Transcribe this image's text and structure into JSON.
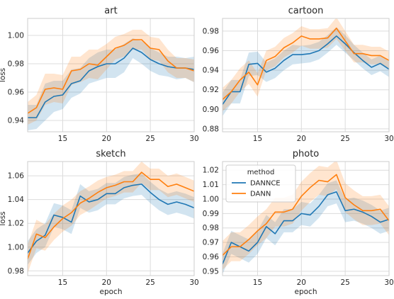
{
  "chart_data": [
    {
      "type": "line",
      "title": "art",
      "xlabel": "",
      "ylabel": "loss",
      "xlim": [
        11,
        30
      ],
      "ylim": [
        0.932,
        1.012
      ],
      "xticks": [
        "15",
        "20",
        "25",
        "30"
      ],
      "yticks": [
        "0.94",
        "0.96",
        "0.98",
        "1.00"
      ],
      "x": [
        11,
        12,
        13,
        14,
        15,
        16,
        17,
        18,
        19,
        20,
        21,
        22,
        23,
        24,
        25,
        26,
        27,
        28,
        29,
        30
      ],
      "series": [
        {
          "name": "DANNCE",
          "color": "#1f77b4",
          "values": [
            0.942,
            0.942,
            0.953,
            0.957,
            0.958,
            0.966,
            0.968,
            0.975,
            0.978,
            0.98,
            0.98,
            0.984,
            0.991,
            0.988,
            0.983,
            0.98,
            0.978,
            0.977,
            0.977,
            0.976
          ],
          "lower": [
            0.933,
            0.934,
            0.94,
            0.946,
            0.948,
            0.956,
            0.959,
            0.966,
            0.968,
            0.97,
            0.97,
            0.974,
            0.984,
            0.98,
            0.975,
            0.972,
            0.971,
            0.969,
            0.97,
            0.967
          ],
          "upper": [
            0.951,
            0.951,
            0.966,
            0.968,
            0.968,
            0.976,
            0.977,
            0.984,
            0.988,
            0.99,
            0.99,
            0.994,
            0.998,
            0.996,
            0.991,
            0.988,
            0.985,
            0.985,
            0.984,
            0.985
          ]
        },
        {
          "name": "DANN",
          "color": "#ff7f0e",
          "values": [
            0.945,
            0.949,
            0.962,
            0.963,
            0.962,
            0.975,
            0.976,
            0.98,
            0.979,
            0.985,
            0.991,
            0.993,
            0.997,
            0.997,
            0.991,
            0.99,
            0.982,
            0.977,
            0.977,
            0.975
          ],
          "lower": [
            0.937,
            0.94,
            0.951,
            0.953,
            0.952,
            0.965,
            0.967,
            0.97,
            0.969,
            0.976,
            0.983,
            0.985,
            0.99,
            0.99,
            0.983,
            0.982,
            0.974,
            0.97,
            0.97,
            0.967
          ],
          "upper": [
            0.953,
            0.958,
            0.973,
            0.973,
            0.972,
            0.985,
            0.985,
            0.99,
            0.99,
            0.994,
            0.999,
            1.001,
            1.004,
            1.004,
            0.999,
            0.998,
            0.99,
            0.984,
            0.984,
            0.983
          ]
        }
      ]
    },
    {
      "type": "line",
      "title": "cartoon",
      "xlabel": "",
      "ylabel": "",
      "xlim": [
        11,
        30
      ],
      "ylim": [
        0.877,
        0.993
      ],
      "xticks": [
        "15",
        "20",
        "25",
        "30"
      ],
      "yticks": [
        "0.88",
        "0.90",
        "0.92",
        "0.94",
        "0.96",
        "0.98"
      ],
      "x": [
        11,
        12,
        13,
        14,
        15,
        16,
        17,
        18,
        19,
        20,
        21,
        22,
        23,
        24,
        25,
        26,
        27,
        28,
        29,
        30
      ],
      "series": [
        {
          "name": "DANNCE",
          "color": "#1f77b4",
          "values": [
            0.905,
            0.918,
            0.918,
            0.946,
            0.947,
            0.938,
            0.942,
            0.95,
            0.956,
            0.956,
            0.957,
            0.96,
            0.967,
            0.975,
            0.967,
            0.958,
            0.95,
            0.943,
            0.947,
            0.941
          ],
          "lower": [
            0.893,
            0.906,
            0.906,
            0.934,
            0.935,
            0.928,
            0.932,
            0.94,
            0.946,
            0.947,
            0.948,
            0.951,
            0.958,
            0.966,
            0.958,
            0.95,
            0.942,
            0.935,
            0.939,
            0.933
          ],
          "upper": [
            0.917,
            0.93,
            0.93,
            0.958,
            0.959,
            0.948,
            0.952,
            0.96,
            0.966,
            0.965,
            0.966,
            0.969,
            0.976,
            0.984,
            0.976,
            0.966,
            0.958,
            0.951,
            0.955,
            0.949
          ]
        },
        {
          "name": "DANN",
          "color": "#ff7f0e",
          "values": [
            0.91,
            0.918,
            0.93,
            0.938,
            0.925,
            0.95,
            0.954,
            0.963,
            0.968,
            0.975,
            0.972,
            0.972,
            0.973,
            0.983,
            0.97,
            0.957,
            0.957,
            0.955,
            0.955,
            0.95
          ],
          "lower": [
            0.898,
            0.906,
            0.918,
            0.926,
            0.913,
            0.94,
            0.944,
            0.953,
            0.958,
            0.965,
            0.962,
            0.962,
            0.963,
            0.972,
            0.96,
            0.948,
            0.948,
            0.946,
            0.946,
            0.941
          ],
          "upper": [
            0.922,
            0.93,
            0.942,
            0.95,
            0.937,
            0.96,
            0.964,
            0.973,
            0.978,
            0.985,
            0.982,
            0.982,
            0.983,
            0.994,
            0.98,
            0.966,
            0.966,
            0.964,
            0.964,
            0.959
          ]
        }
      ]
    },
    {
      "type": "line",
      "title": "sketch",
      "xlabel": "epoch",
      "ylabel": "loss",
      "xlim": [
        11,
        30
      ],
      "ylim": [
        0.976,
        1.072
      ],
      "xticks": [
        "15",
        "20",
        "25",
        "30"
      ],
      "yticks": [
        "0.98",
        "1.00",
        "1.02",
        "1.04",
        "1.06"
      ],
      "x": [
        11,
        12,
        13,
        14,
        15,
        16,
        17,
        18,
        19,
        20,
        21,
        22,
        23,
        24,
        25,
        26,
        27,
        28,
        29,
        30
      ],
      "series": [
        {
          "name": "DANNCE",
          "color": "#1f77b4",
          "values": [
            0.995,
            1.005,
            1.01,
            1.027,
            1.025,
            1.021,
            1.043,
            1.038,
            1.04,
            1.045,
            1.045,
            1.05,
            1.052,
            1.053,
            1.046,
            1.04,
            1.036,
            1.038,
            1.036,
            1.033
          ],
          "lower": [
            0.985,
            0.995,
            1.0,
            1.017,
            1.015,
            1.011,
            1.033,
            1.029,
            1.031,
            1.036,
            1.036,
            1.041,
            1.043,
            1.044,
            1.037,
            1.031,
            1.027,
            1.029,
            1.027,
            1.024
          ],
          "upper": [
            1.005,
            1.015,
            1.02,
            1.037,
            1.035,
            1.031,
            1.053,
            1.047,
            1.049,
            1.054,
            1.054,
            1.059,
            1.061,
            1.062,
            1.055,
            1.049,
            1.045,
            1.047,
            1.045,
            1.042
          ]
        },
        {
          "name": "DANN",
          "color": "#ff7f0e",
          "values": [
            0.99,
            1.011,
            1.008,
            1.017,
            1.024,
            1.029,
            1.037,
            1.041,
            1.046,
            1.05,
            1.052,
            1.055,
            1.055,
            1.063,
            1.057,
            1.057,
            1.051,
            1.053,
            1.05,
            1.047
          ],
          "lower": [
            0.978,
            0.999,
            0.997,
            1.006,
            1.013,
            1.018,
            1.027,
            1.031,
            1.036,
            1.041,
            1.043,
            1.046,
            1.046,
            1.054,
            1.048,
            1.048,
            1.042,
            1.044,
            1.041,
            1.038
          ],
          "upper": [
            1.002,
            1.023,
            1.019,
            1.028,
            1.035,
            1.04,
            1.047,
            1.051,
            1.056,
            1.059,
            1.061,
            1.064,
            1.064,
            1.072,
            1.066,
            1.066,
            1.06,
            1.062,
            1.059,
            1.056
          ]
        }
      ]
    },
    {
      "type": "line",
      "title": "photo",
      "xlabel": "epoch",
      "ylabel": "",
      "xlim": [
        11,
        30
      ],
      "ylim": [
        0.947,
        1.026
      ],
      "xticks": [
        "15",
        "20",
        "25",
        "30"
      ],
      "yticks": [
        "0.95",
        "0.96",
        "0.97",
        "0.98",
        "0.99",
        "1.00",
        "1.01",
        "1.02"
      ],
      "legend": {
        "title": "method",
        "placement": "upper-left"
      },
      "x": [
        11,
        12,
        13,
        14,
        15,
        16,
        17,
        18,
        19,
        20,
        21,
        22,
        23,
        24,
        25,
        26,
        27,
        28,
        29,
        30
      ],
      "series": [
        {
          "name": "DANNCE",
          "color": "#1f77b4",
          "values": [
            0.955,
            0.97,
            0.967,
            0.964,
            0.97,
            0.981,
            0.976,
            0.985,
            0.985,
            0.99,
            0.989,
            0.995,
            1.003,
            1.005,
            0.992,
            0.993,
            0.991,
            0.988,
            0.984,
            0.986
          ],
          "lower": [
            0.948,
            0.962,
            0.959,
            0.956,
            0.962,
            0.973,
            0.968,
            0.977,
            0.977,
            0.982,
            0.981,
            0.987,
            0.995,
            0.997,
            0.984,
            0.985,
            0.983,
            0.98,
            0.976,
            0.978
          ],
          "upper": [
            0.962,
            0.978,
            0.975,
            0.972,
            0.978,
            0.989,
            0.984,
            0.993,
            0.993,
            0.998,
            0.997,
            1.003,
            1.011,
            1.013,
            1.0,
            1.001,
            0.999,
            0.996,
            0.992,
            0.994
          ]
        },
        {
          "name": "DANN",
          "color": "#ff7f0e",
          "values": [
            0.961,
            0.967,
            0.967,
            0.972,
            0.978,
            0.983,
            0.991,
            0.991,
            0.993,
            1.002,
            1.008,
            1.013,
            1.012,
            1.017,
            1.001,
            0.996,
            0.992,
            0.992,
            0.993,
            0.985
          ],
          "lower": [
            0.951,
            0.957,
            0.957,
            0.962,
            0.968,
            0.973,
            0.981,
            0.981,
            0.983,
            0.992,
            0.998,
            1.003,
            1.002,
            1.007,
            0.991,
            0.986,
            0.982,
            0.982,
            0.983,
            0.975
          ],
          "upper": [
            0.971,
            0.977,
            0.977,
            0.982,
            0.988,
            0.993,
            1.001,
            1.001,
            1.003,
            1.012,
            1.018,
            1.023,
            1.022,
            1.027,
            1.011,
            1.006,
            1.002,
            1.002,
            1.003,
            0.995
          ]
        }
      ]
    }
  ]
}
